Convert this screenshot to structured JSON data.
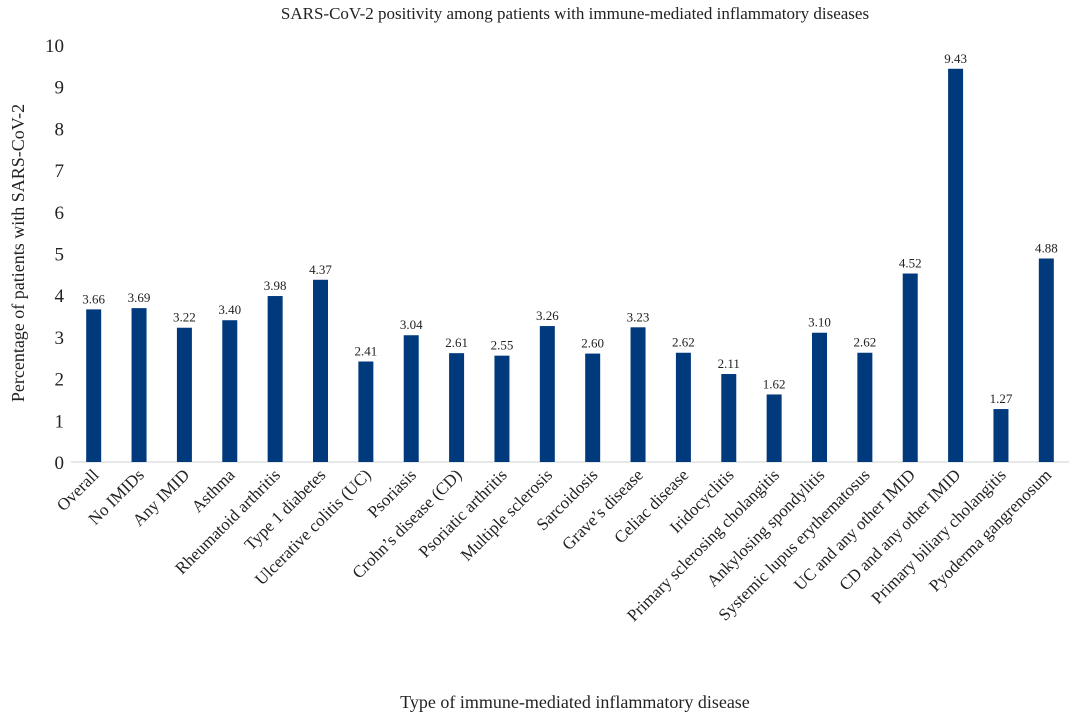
{
  "chart_data": {
    "type": "bar",
    "title": "SARS-CoV-2 positivity among patients with immune-mediated inflammatory diseases",
    "x_label": "Type of immune-mediated inflammatory disease",
    "y_label": "Percentage of patients with SARS-CoV-2",
    "categories": [
      "Overall",
      "No IMIDs",
      "Any IMID",
      "Asthma",
      "Rheumatoid arthritis",
      "Type 1 diabetes",
      "Ulcerative colitis (UC)",
      "Psoriasis",
      "Crohn’s disease (CD)",
      "Psoriatic arthritis",
      "Multiple sclerosis",
      "Sarcoidosis",
      "Grave’s disease",
      "Celiac disease",
      "Iridocyclitis",
      "Primary sclerosing cholangitis",
      "Ankylosing spondylitis",
      "Systemic lupus erythematosus",
      "UC and any other IMID",
      "CD and any other IMID",
      "Primary biliary cholangitis",
      "Pyoderma gangrenosum"
    ],
    "values": [
      3.66,
      3.69,
      3.22,
      3.4,
      3.98,
      4.37,
      2.41,
      3.04,
      2.61,
      2.55,
      3.26,
      2.6,
      3.23,
      2.62,
      2.11,
      1.62,
      3.1,
      2.62,
      4.52,
      9.43,
      1.27,
      4.88
    ],
    "value_labels": [
      "3.66",
      "3.69",
      "3.22",
      "3.40",
      "3.98",
      "4.37",
      "2.41",
      "3.04",
      "2.61",
      "2.55",
      "3.26",
      "2.60",
      "3.23",
      "2.62",
      "2.11",
      "1.62",
      "3.10",
      "2.62",
      "4.52",
      "9.43",
      "1.27",
      "4.88"
    ],
    "color": "#003a7d",
    "ylim": [
      0,
      10
    ],
    "yticks": [
      0,
      1,
      2,
      3,
      4,
      5,
      6,
      7,
      8,
      9,
      10
    ],
    "grid": false
  }
}
